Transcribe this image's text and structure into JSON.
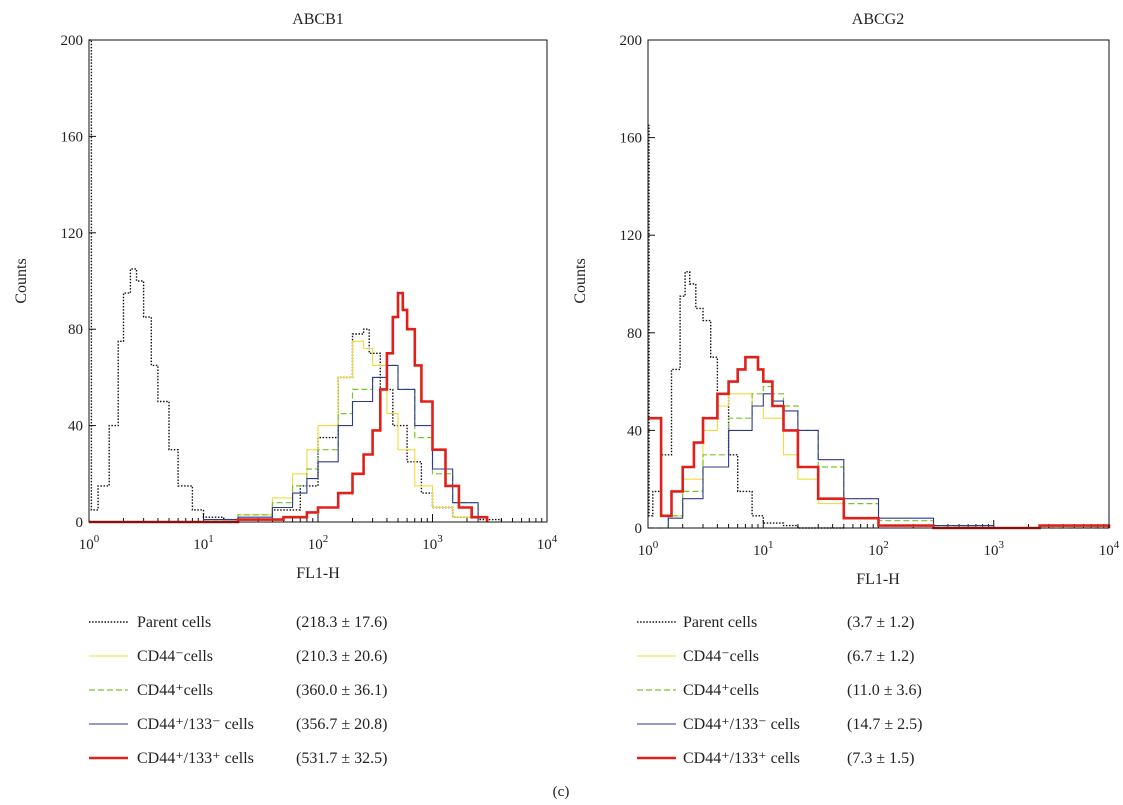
{
  "panel_label": "(c)",
  "colors": {
    "parent": "#111111",
    "cd44neg": "#f2dc3a",
    "cd44pos": "#7cc22c",
    "cd44pos133neg": "#2d3a94",
    "cd44pos133pos": "#e0201b"
  },
  "chart_data": [
    {
      "type": "line",
      "title": "ABCB1",
      "xlabel": "FL1-H",
      "ylabel": "Counts",
      "xscale": "log",
      "xlim": [
        1,
        10000
      ],
      "ylim": [
        0,
        200
      ],
      "yticks": [
        "0",
        "40",
        "80",
        "120",
        "160",
        "200"
      ],
      "xticks": [
        {
          "base": "10",
          "exp": "0"
        },
        {
          "base": "10",
          "exp": "1"
        },
        {
          "base": "10",
          "exp": "2"
        },
        {
          "base": "10",
          "exp": "3"
        },
        {
          "base": "10",
          "exp": "4"
        }
      ],
      "series": [
        {
          "key": "parent",
          "style": "dotted",
          "x": [
            1,
            1.05,
            1.2,
            1.5,
            1.8,
            2.0,
            2.3,
            2.6,
            3.0,
            3.5,
            4.0,
            5.0,
            6.0,
            8.0,
            10,
            15,
            20,
            40,
            70,
            100,
            150,
            200,
            250,
            280,
            350,
            450,
            600,
            800,
            1000,
            1500,
            2500,
            4000
          ],
          "y": [
            200,
            5,
            15,
            40,
            75,
            95,
            105,
            100,
            85,
            65,
            50,
            30,
            15,
            5,
            2,
            1,
            1,
            5,
            15,
            35,
            60,
            78,
            80,
            70,
            55,
            40,
            25,
            12,
            6,
            2,
            1,
            0
          ]
        },
        {
          "key": "cd44neg",
          "style": "solid",
          "x": [
            1,
            10,
            20,
            40,
            60,
            80,
            100,
            150,
            200,
            250,
            300,
            400,
            500,
            700,
            1000,
            1500,
            2500
          ],
          "y": [
            0,
            1,
            3,
            10,
            20,
            30,
            40,
            60,
            75,
            72,
            65,
            45,
            30,
            15,
            6,
            2,
            0
          ]
        },
        {
          "key": "cd44pos",
          "style": "dashed",
          "x": [
            1,
            10,
            20,
            40,
            60,
            80,
            100,
            150,
            200,
            300,
            400,
            500,
            700,
            1000,
            1500,
            2500
          ],
          "y": [
            0,
            1,
            3,
            8,
            15,
            22,
            30,
            45,
            55,
            60,
            65,
            55,
            35,
            20,
            8,
            0
          ]
        },
        {
          "key": "cd44pos133neg",
          "style": "solid",
          "x": [
            1,
            10,
            20,
            40,
            60,
            80,
            100,
            150,
            200,
            300,
            400,
            500,
            700,
            1000,
            1500,
            2500
          ],
          "y": [
            0,
            1,
            2,
            6,
            12,
            18,
            25,
            40,
            50,
            60,
            65,
            55,
            40,
            22,
            8,
            0
          ]
        },
        {
          "key": "cd44pos133pos",
          "style": "thick",
          "x": [
            1,
            20,
            50,
            80,
            100,
            150,
            200,
            250,
            300,
            350,
            400,
            450,
            500,
            550,
            600,
            700,
            800,
            1000,
            1300,
            1700,
            2200,
            3000
          ],
          "y": [
            0,
            1,
            2,
            4,
            6,
            12,
            20,
            28,
            38,
            55,
            70,
            85,
            95,
            88,
            80,
            65,
            50,
            30,
            15,
            6,
            2,
            0
          ]
        }
      ],
      "legend": [
        {
          "key": "parent",
          "label": "Parent cells",
          "value": "(218.3 ± 17.6)"
        },
        {
          "key": "cd44neg",
          "label": "CD44⁻cells",
          "value": "(210.3 ± 20.6)"
        },
        {
          "key": "cd44pos",
          "label": "CD44⁺cells",
          "value": "(360.0 ± 36.1)"
        },
        {
          "key": "cd44pos133neg",
          "label": "CD44⁺/133⁻ cells",
          "value": "(356.7 ± 20.8)"
        },
        {
          "key": "cd44pos133pos",
          "label": "CD44⁺/133⁺ cells",
          "value": "(531.7 ± 32.5)"
        }
      ]
    },
    {
      "type": "line",
      "title": "ABCG2",
      "xlabel": "FL1-H",
      "ylabel": "Counts",
      "xscale": "log",
      "xlim": [
        1,
        10000
      ],
      "ylim": [
        0,
        200
      ],
      "yticks": [
        "0",
        "40",
        "80",
        "120",
        "160",
        "200"
      ],
      "xticks": [
        {
          "base": "10",
          "exp": "0"
        },
        {
          "base": "10",
          "exp": "1"
        },
        {
          "base": "10",
          "exp": "2"
        },
        {
          "base": "10",
          "exp": "3"
        },
        {
          "base": "10",
          "exp": "4"
        }
      ],
      "series": [
        {
          "key": "parent",
          "style": "dotted",
          "x": [
            1,
            1.02,
            1.1,
            1.3,
            1.6,
            1.9,
            2.1,
            2.3,
            2.6,
            3.0,
            3.5,
            4.0,
            5.0,
            6.0,
            8.0,
            10,
            15,
            20,
            30,
            50
          ],
          "y": [
            165,
            5,
            15,
            30,
            65,
            95,
            105,
            100,
            90,
            85,
            70,
            55,
            30,
            15,
            5,
            2,
            1,
            0,
            0,
            0
          ]
        },
        {
          "key": "cd44neg",
          "style": "solid",
          "x": [
            1,
            1.5,
            2,
            3,
            4,
            5,
            6,
            8,
            10,
            15,
            20,
            30,
            50,
            100,
            300,
            1000,
            10000
          ],
          "y": [
            0,
            5,
            20,
            40,
            50,
            55,
            55,
            50,
            45,
            30,
            20,
            10,
            4,
            1,
            0,
            0,
            0
          ]
        },
        {
          "key": "cd44pos",
          "style": "dashed",
          "x": [
            1,
            1.5,
            2,
            3,
            5,
            8,
            10,
            12,
            15,
            20,
            30,
            50,
            100,
            300,
            1000,
            10000
          ],
          "y": [
            0,
            5,
            15,
            30,
            45,
            55,
            58,
            55,
            50,
            40,
            25,
            10,
            3,
            1,
            0,
            0
          ]
        },
        {
          "key": "cd44pos133neg",
          "style": "solid",
          "x": [
            1,
            1.5,
            2,
            3,
            5,
            8,
            10,
            12,
            15,
            20,
            30,
            50,
            100,
            300,
            1000,
            10000
          ],
          "y": [
            0,
            4,
            12,
            25,
            40,
            50,
            55,
            52,
            48,
            40,
            28,
            12,
            4,
            1,
            0,
            0
          ]
        },
        {
          "key": "cd44pos133pos",
          "style": "thick",
          "x": [
            1,
            1.3,
            1.6,
            2,
            2.5,
            3,
            4,
            5,
            6,
            7,
            8,
            9,
            10,
            12,
            15,
            20,
            30,
            50,
            100,
            300,
            1000,
            2500,
            10000
          ],
          "y": [
            45,
            5,
            15,
            25,
            35,
            45,
            55,
            60,
            65,
            70,
            70,
            65,
            60,
            50,
            40,
            25,
            12,
            4,
            1,
            0,
            0,
            1,
            0
          ]
        }
      ],
      "legend": [
        {
          "key": "parent",
          "label": "Parent cells",
          "value": "(3.7 ± 1.2)"
        },
        {
          "key": "cd44neg",
          "label": "CD44⁻cells",
          "value": "(6.7 ± 1.2)"
        },
        {
          "key": "cd44pos",
          "label": "CD44⁺cells",
          "value": "(11.0 ± 3.6)"
        },
        {
          "key": "cd44pos133neg",
          "label": "CD44⁺/133⁻ cells",
          "value": "(14.7 ± 2.5)"
        },
        {
          "key": "cd44pos133pos",
          "label": "CD44⁺/133⁺ cells",
          "value": "(7.3 ± 1.5)"
        }
      ]
    }
  ]
}
